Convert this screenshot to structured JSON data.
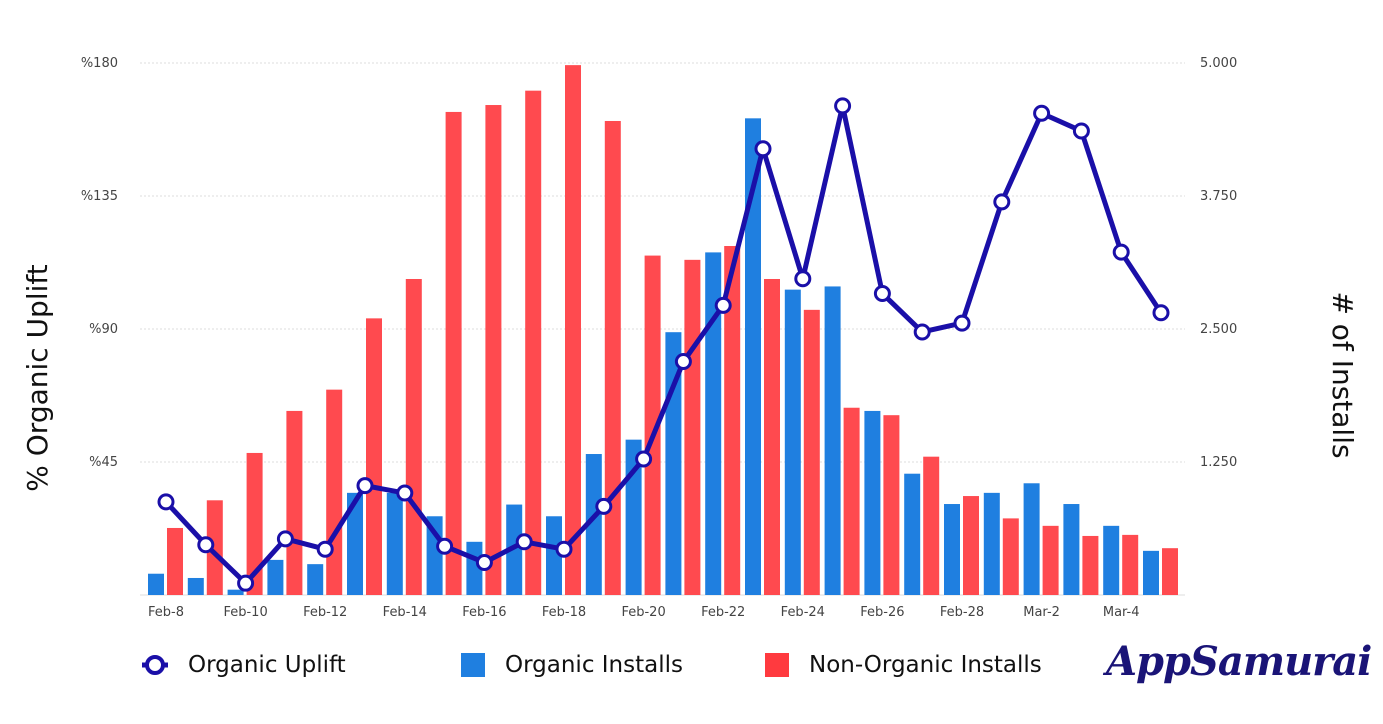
{
  "chart_data": {
    "type": "bar",
    "title": "",
    "ylabel": "% Organic Uplift",
    "y2label": "# of Installs",
    "ylim": [
      0,
      180
    ],
    "y2lim": [
      0,
      5000
    ],
    "yticks": [
      "%45",
      "%90",
      "%135",
      "%180"
    ],
    "y2ticks": [
      "1.250",
      "2.500",
      "3.750",
      "5.000"
    ],
    "grid": true,
    "legend_position": "bottom",
    "x": [
      "Feb-8",
      "Feb-9",
      "Feb-10",
      "Feb-11",
      "Feb-12",
      "Feb-13",
      "Feb-14",
      "Feb-15",
      "Feb-16",
      "Feb-17",
      "Feb-18",
      "Feb-19",
      "Feb-20",
      "Feb-21",
      "Feb-22",
      "Feb-23",
      "Feb-24",
      "Feb-25",
      "Feb-26",
      "Feb-27",
      "Feb-28",
      "Mar-1",
      "Mar-2",
      "Mar-3",
      "Mar-4",
      "Mar-5"
    ],
    "xtick_labels": [
      "Feb-8",
      "Feb-10",
      "Feb-12",
      "Feb-14",
      "Feb-16",
      "Feb-18",
      "Feb-20",
      "Feb-22",
      "Feb-24",
      "Feb-26",
      "Feb-28",
      "Mar-2",
      "Mar-4"
    ],
    "series": [
      {
        "name": "Organic Uplift",
        "type": "line",
        "axis": "left",
        "color": "#1a0fa8",
        "values": [
          31.5,
          17,
          4,
          19,
          15.5,
          37,
          34.5,
          16.5,
          11,
          18,
          15.5,
          30,
          46,
          79,
          98,
          151,
          107,
          165.5,
          102,
          89,
          92,
          133,
          163,
          157,
          116,
          95.5
        ]
      },
      {
        "name": "Organic Installs",
        "type": "bar",
        "axis": "right",
        "color": "#1f7fe0",
        "values": [
          200,
          160,
          50,
          330,
          290,
          960,
          960,
          740,
          500,
          850,
          740,
          1325,
          1460,
          2470,
          3220,
          4480,
          2870,
          2900,
          1730,
          1140,
          855,
          960,
          1050,
          855,
          650,
          415
        ]
      },
      {
        "name": "Non-Organic Installs",
        "type": "bar",
        "axis": "right",
        "color": "#ff4a4f",
        "values": [
          630,
          890,
          1335,
          1730,
          1930,
          2600,
          2970,
          4540,
          4605,
          4740,
          4980,
          4455,
          3190,
          3150,
          3280,
          2970,
          2680,
          1760,
          1690,
          1300,
          930,
          720,
          650,
          555,
          565,
          440
        ]
      }
    ]
  },
  "legend": {
    "uplift": "Organic Uplift",
    "organic": "Organic Installs",
    "non_organic": "Non-Organic Installs"
  },
  "logo": "AppSamurai"
}
